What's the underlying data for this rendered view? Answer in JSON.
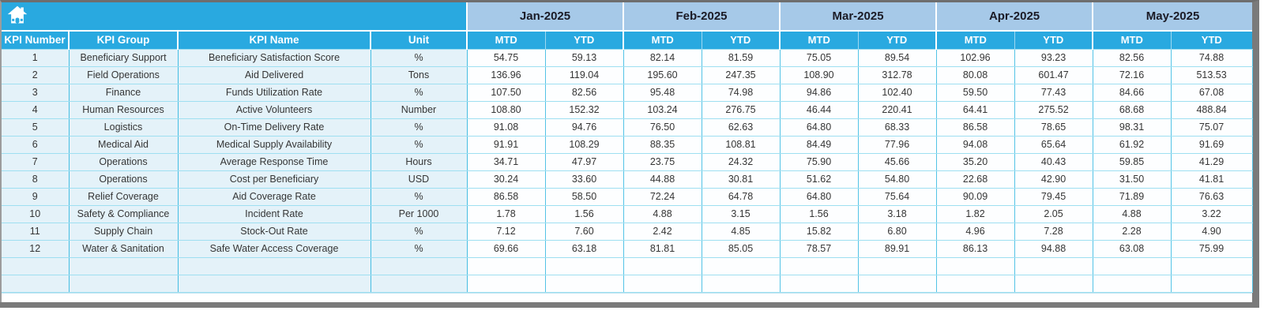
{
  "table": {
    "home_icon": "home",
    "left_columns": [
      "KPI Number",
      "KPI Group",
      "KPI Name",
      "Unit"
    ],
    "months": [
      "Jan-2025",
      "Feb-2025",
      "Mar-2025",
      "Apr-2025",
      "May-2025"
    ],
    "sub_columns": [
      "MTD",
      "YTD"
    ],
    "empty_row_count": 2,
    "rows": [
      {
        "number": "1",
        "group": "Beneficiary Support",
        "name": "Beneficiary Satisfaction Score",
        "unit": "%",
        "values": [
          "54.75",
          "59.13",
          "82.14",
          "81.59",
          "75.05",
          "89.54",
          "102.96",
          "93.23",
          "82.56",
          "74.88"
        ]
      },
      {
        "number": "2",
        "group": "Field Operations",
        "name": "Aid Delivered",
        "unit": "Tons",
        "values": [
          "136.96",
          "119.04",
          "195.60",
          "247.35",
          "108.90",
          "312.78",
          "80.08",
          "601.47",
          "72.16",
          "513.53"
        ]
      },
      {
        "number": "3",
        "group": "Finance",
        "name": "Funds Utilization Rate",
        "unit": "%",
        "values": [
          "107.50",
          "82.56",
          "95.48",
          "74.98",
          "94.86",
          "102.40",
          "59.50",
          "77.43",
          "84.66",
          "67.08"
        ]
      },
      {
        "number": "4",
        "group": "Human Resources",
        "name": "Active Volunteers",
        "unit": "Number",
        "values": [
          "108.80",
          "152.32",
          "103.24",
          "276.75",
          "46.44",
          "220.41",
          "64.41",
          "275.52",
          "68.68",
          "488.84"
        ]
      },
      {
        "number": "5",
        "group": "Logistics",
        "name": "On-Time Delivery Rate",
        "unit": "%",
        "values": [
          "91.08",
          "94.76",
          "76.50",
          "62.63",
          "64.80",
          "68.33",
          "86.58",
          "78.65",
          "98.31",
          "75.07"
        ]
      },
      {
        "number": "6",
        "group": "Medical Aid",
        "name": "Medical Supply Availability",
        "unit": "%",
        "values": [
          "91.91",
          "108.29",
          "88.35",
          "108.81",
          "84.49",
          "77.96",
          "94.08",
          "65.64",
          "61.92",
          "91.69"
        ]
      },
      {
        "number": "7",
        "group": "Operations",
        "name": "Average Response Time",
        "unit": "Hours",
        "values": [
          "34.71",
          "47.97",
          "23.75",
          "24.32",
          "75.90",
          "45.66",
          "35.20",
          "40.43",
          "59.85",
          "41.29"
        ]
      },
      {
        "number": "8",
        "group": "Operations",
        "name": "Cost per Beneficiary",
        "unit": "USD",
        "values": [
          "30.24",
          "33.60",
          "44.88",
          "30.81",
          "51.62",
          "54.80",
          "22.68",
          "42.90",
          "31.50",
          "41.81"
        ]
      },
      {
        "number": "9",
        "group": "Relief Coverage",
        "name": "Aid Coverage Rate",
        "unit": "%",
        "values": [
          "86.58",
          "58.50",
          "72.24",
          "64.78",
          "64.80",
          "75.64",
          "90.09",
          "79.45",
          "71.89",
          "76.63"
        ]
      },
      {
        "number": "10",
        "group": "Safety & Compliance",
        "name": "Incident Rate",
        "unit": "Per 1000",
        "values": [
          "1.78",
          "1.56",
          "4.88",
          "3.15",
          "1.56",
          "3.18",
          "1.82",
          "2.05",
          "4.88",
          "3.22"
        ]
      },
      {
        "number": "11",
        "group": "Supply Chain",
        "name": "Stock-Out Rate",
        "unit": "%",
        "values": [
          "7.12",
          "7.60",
          "2.42",
          "4.85",
          "15.82",
          "6.80",
          "4.96",
          "7.28",
          "2.28",
          "4.90"
        ]
      },
      {
        "number": "12",
        "group": "Water & Sanitation",
        "name": "Safe Water Access Coverage",
        "unit": "%",
        "values": [
          "69.66",
          "63.18",
          "81.81",
          "85.05",
          "78.57",
          "89.91",
          "86.13",
          "94.88",
          "63.08",
          "75.99"
        ]
      }
    ],
    "colors": {
      "header_cyan": "#29a9e0",
      "month_band_blue": "#a6c9e8",
      "row_tint": "#e4f2f9",
      "grid_line": "#53c3e6",
      "frame_gray": "#7a7a7a"
    }
  }
}
